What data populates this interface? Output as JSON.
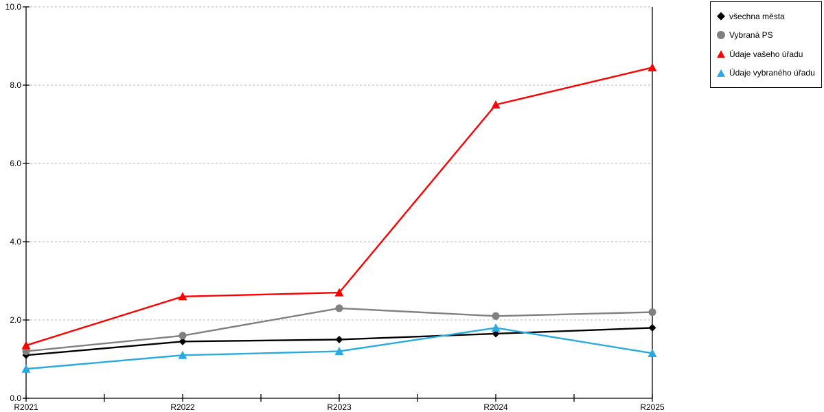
{
  "chart_data": {
    "type": "line",
    "title": "",
    "xlabel": "",
    "ylabel": "",
    "categories": [
      "R2021",
      "R2022",
      "R2023",
      "R2024",
      "R2025"
    ],
    "series": [
      {
        "name": "všechna města",
        "color": "#000000",
        "marker": "diamond",
        "values": [
          1.1,
          1.45,
          1.5,
          1.65,
          1.8
        ]
      },
      {
        "name": "Vybraná PS",
        "color": "#808080",
        "marker": "circle",
        "values": [
          1.2,
          1.6,
          2.3,
          2.1,
          2.2
        ]
      },
      {
        "name": "Údaje vašeho úřadu",
        "color": "#ff0000",
        "marker": "triangle",
        "values": [
          1.35,
          2.6,
          2.7,
          7.5,
          8.45
        ]
      },
      {
        "name": "Údaje vybraného úřadu",
        "color": "#29abe2",
        "marker": "triangle",
        "values": [
          0.75,
          1.1,
          1.2,
          1.8,
          1.15
        ]
      }
    ],
    "ylim": [
      0,
      10
    ],
    "y_tick_step": 2,
    "y_tick_labels": [
      "0.0",
      "2.0",
      "4.0",
      "6.0",
      "8.0",
      "10.0"
    ],
    "grid": "horizontal-dashed",
    "grid_color": "#b8b8b8",
    "axis_color": "#000000",
    "legend_position": "top-right"
  }
}
